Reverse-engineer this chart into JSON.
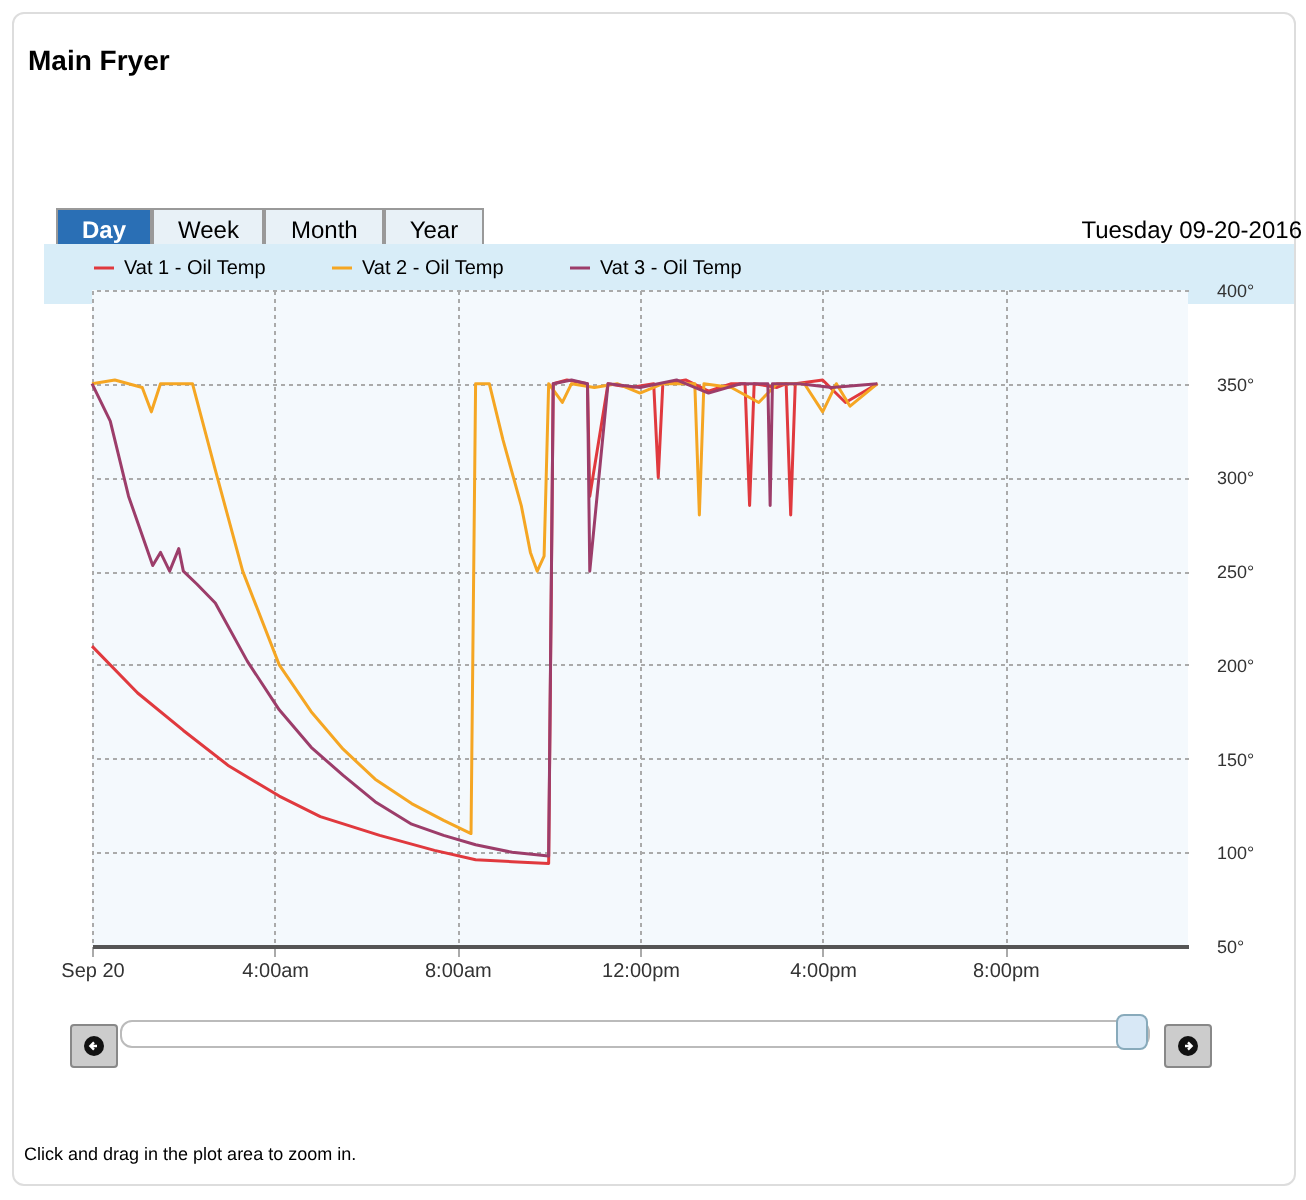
{
  "chart_data": {
    "type": "line",
    "title": "Main Fryer",
    "subtitle": "Tuesday 09-20-2016",
    "annotations": [
      "Click and drag in the plot area to zoom in.",
      "Day",
      "Week",
      "Month",
      "Year"
    ],
    "series": [
      {
        "name": "Vat 1 - Oil Temp",
        "color": "#e0393e",
        "x": [
          0,
          1,
          2,
          3,
          4.1,
          5,
          6.3,
          7.5,
          8.4,
          9.2,
          10.0,
          10.1,
          10.4,
          10.85,
          10.9,
          11.3,
          11.8,
          12.3,
          12.4,
          12.5,
          13,
          13.5,
          14,
          14.3,
          14.4,
          14.5,
          15,
          15.2,
          15.3,
          15.4,
          16,
          16.5,
          17.2
        ],
        "values": [
          210,
          185,
          165,
          146,
          130,
          119,
          109,
          101,
          96,
          95,
          94,
          350,
          352,
          350,
          290,
          350,
          348,
          350,
          300,
          350,
          352,
          346,
          350,
          350,
          285,
          350,
          348,
          350,
          280,
          350,
          352,
          340,
          350
        ]
      },
      {
        "name": "Vat 2 - Oil Temp",
        "color": "#f5a623",
        "x": [
          0,
          0.5,
          1.1,
          1.3,
          1.5,
          2.0,
          2.2,
          2.7,
          3.3,
          4.1,
          4.8,
          5.5,
          6.2,
          7.0,
          7.7,
          8.3,
          8.4,
          8.7,
          9.0,
          9.4,
          9.6,
          9.75,
          9.9,
          10.0,
          10.3,
          10.5,
          11,
          11.5,
          12,
          12.5,
          13.2,
          13.3,
          13.4,
          14,
          14.6,
          15,
          15.6,
          16,
          16.3,
          16.6,
          17.2
        ],
        "values": [
          350,
          352,
          348,
          335,
          350,
          350,
          350,
          304,
          250,
          200,
          175,
          155,
          139,
          126,
          117,
          110,
          350,
          350,
          320,
          285,
          260,
          250,
          258,
          350,
          340,
          350,
          348,
          350,
          345,
          350,
          350,
          280,
          350,
          348,
          340,
          350,
          350,
          335,
          350,
          338,
          350
        ]
      },
      {
        "name": "Vat 3 - Oil Temp",
        "color": "#9c3d6a",
        "x": [
          0,
          0.4,
          0.8,
          1.33,
          1.5,
          1.7,
          1.9,
          2.0,
          2.3,
          2.7,
          3.4,
          4.1,
          4.8,
          5.5,
          6.2,
          7.0,
          7.7,
          8.4,
          9.2,
          10.0,
          10.1,
          10.5,
          10.85,
          10.9,
          11.3,
          12,
          12.8,
          13.5,
          14.2,
          14.8,
          14.85,
          14.9,
          15.5,
          16.2,
          17.2
        ],
        "values": [
          350,
          330,
          290,
          253,
          260,
          250,
          262,
          250,
          243,
          233,
          202,
          176,
          156,
          141,
          127,
          115,
          109,
          104,
          100,
          98,
          350,
          352,
          350,
          250,
          350,
          348,
          352,
          345,
          350,
          350,
          285,
          350,
          350,
          348,
          350
        ]
      }
    ],
    "xlim": [
      0,
      24
    ],
    "xticks": [
      {
        "value": 0,
        "label": "Sep 20"
      },
      {
        "value": 4,
        "label": "4:00am"
      },
      {
        "value": 8,
        "label": "8:00am"
      },
      {
        "value": 12,
        "label": "12:00pm"
      },
      {
        "value": 16,
        "label": "4:00pm"
      },
      {
        "value": 20,
        "label": "8:00pm"
      }
    ],
    "ylim": [
      50,
      400
    ],
    "yticks": [
      {
        "value": 50,
        "label": "50°"
      },
      {
        "value": 100,
        "label": "100°"
      },
      {
        "value": 150,
        "label": "150°"
      },
      {
        "value": 200,
        "label": "200°"
      },
      {
        "value": 250,
        "label": "250°"
      },
      {
        "value": 300,
        "label": "300°"
      },
      {
        "value": 350,
        "label": "350°"
      },
      {
        "value": 400,
        "label": "400°"
      }
    ],
    "grid": true,
    "legend": "top"
  }
}
